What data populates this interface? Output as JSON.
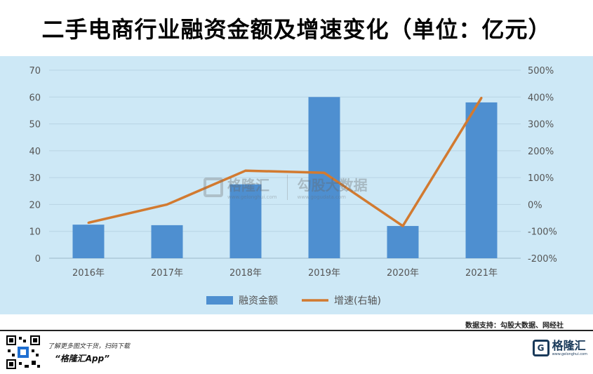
{
  "title": "二手电商行业融资金额及增速变化（单位：亿元）",
  "chart_data": {
    "type": "bar",
    "categories": [
      "2016年",
      "2017年",
      "2018年",
      "2019年",
      "2020年",
      "2021年"
    ],
    "series": [
      {
        "name": "融资金额",
        "type": "bar",
        "axis": "left",
        "values": [
          12.5,
          12.3,
          27.5,
          60.0,
          12.0,
          58.0
        ]
      },
      {
        "name": "增速(右轴)",
        "type": "line",
        "axis": "right",
        "values": [
          -68,
          0,
          126,
          118,
          -80,
          397
        ]
      }
    ],
    "left_ylim": [
      0,
      70
    ],
    "left_ticks": [
      "0",
      "10",
      "20",
      "30",
      "40",
      "50",
      "60",
      "70"
    ],
    "right_ylim": [
      -200,
      500
    ],
    "right_ticks": [
      "-200%",
      "-100%",
      "0%",
      "100%",
      "200%",
      "300%",
      "400%",
      "500%"
    ],
    "grid": true,
    "legend_position": "bottom",
    "colors": {
      "bar": "#4e8fd0",
      "line": "#d27a30",
      "background": "#cde8f6",
      "grid": "#b8d4e4"
    }
  },
  "watermark": {
    "brand": "格隆汇",
    "url": "www.gelonghui.com",
    "brand2": "勾股大数据",
    "url2": "www.gogudata.com"
  },
  "source": "数据支持：勾股大数据、网经社",
  "footer": {
    "line1": "了解更多图文干货，扫码下载",
    "line2": "“格隆汇App”",
    "logo_name": "格隆汇",
    "logo_url": "www.gelonghui.com"
  }
}
